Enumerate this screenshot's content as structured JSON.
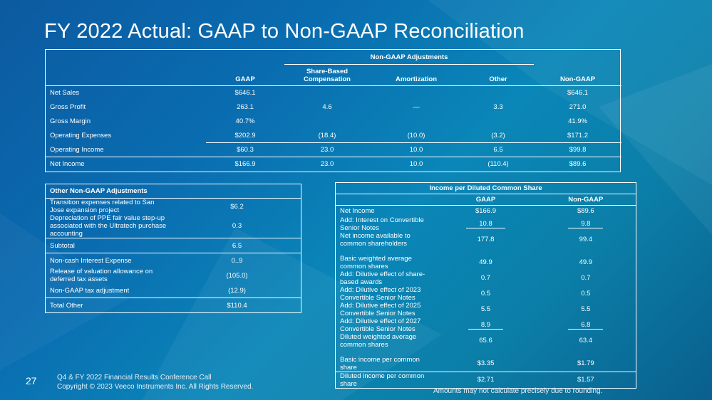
{
  "title": "FY 2022 Actual: GAAP to Non-GAAP Reconciliation",
  "main_table": {
    "group_header": "Non-GAAP Adjustments",
    "columns": [
      "GAAP",
      "Share-Based Compensation",
      "Amortization",
      "Other",
      "Non-GAAP"
    ],
    "col_sbc_line1": "Share-Based",
    "col_sbc_line2": "Compensation",
    "rows": [
      {
        "label": "Net Sales",
        "gaap": "$646.1",
        "sbc": "",
        "amort": "",
        "other": "",
        "nongaap": "$646.1"
      },
      {
        "label": "Gross Profit",
        "gaap": "263.1",
        "sbc": "4.6",
        "amort": "—",
        "other": "3.3",
        "nongaap": "271.0"
      },
      {
        "label": "Gross Margin",
        "gaap": "40.7%",
        "sbc": "",
        "amort": "",
        "other": "",
        "nongaap": "41.9%"
      },
      {
        "label": "Operating Expenses",
        "gaap": "$202.9",
        "sbc": "(18.4)",
        "amort": "(10.0)",
        "other": "(3.2)",
        "nongaap": "$171.2"
      },
      {
        "label": "Operating Income",
        "gaap": "$60.3",
        "sbc": "23.0",
        "amort": "10.0",
        "other": "6.5",
        "nongaap": "$99.8"
      },
      {
        "label": "Net Income",
        "gaap": "$166.9",
        "sbc": "23.0",
        "amort": "10.0",
        "other": "(110.4)",
        "nongaap": "$89.6"
      }
    ]
  },
  "other_table": {
    "header": "Other Non-GAAP Adjustments",
    "rows": [
      {
        "label": "Transition expenses related to San Jose expansion project",
        "value": "$6.2"
      },
      {
        "label": "Depreciation of PPE fair value step-up associated with the Ultratech purchase accounting",
        "value": "0.3"
      },
      {
        "label": "Subtotal",
        "value": "6.5"
      },
      {
        "label": "Non-cash Interest Expense",
        "value": "0..9"
      },
      {
        "label": "Release of valuation allowance on deferred tax assets",
        "value": "(105.0)"
      },
      {
        "label": "Non-GAAP tax adjustment",
        "value": "(12.9)"
      },
      {
        "label": "Total Other",
        "value": "$110.4"
      }
    ]
  },
  "eps_table": {
    "header": "Income per Diluted Common Share",
    "col_gaap": "GAAP",
    "col_nongaap": "Non-GAAP",
    "rows": [
      {
        "label": "Net Income",
        "gaap": "$166.9",
        "nongaap": "$89.6"
      },
      {
        "label": "Add: Interest on Convertible Senior Notes",
        "gaap": "10.8",
        "nongaap": "9.8"
      },
      {
        "label": "Net income available to common shareholders",
        "gaap": "177.8",
        "nongaap": "99.4"
      },
      {
        "label": "Basic weighted average common shares",
        "gaap": "49.9",
        "nongaap": "49.9"
      },
      {
        "label": "Add: Dilutive effect of share-based awards",
        "gaap": "0.7",
        "nongaap": "0.7"
      },
      {
        "label": "Add: Dilutive effect of 2023 Convertible Senior Notes",
        "gaap": "0.5",
        "nongaap": "0.5"
      },
      {
        "label": "Add: Dilutive effect of 2025 Convertible Senior Notes",
        "gaap": "5.5",
        "nongaap": "5.5"
      },
      {
        "label": "Add: Dilutive effect of 2027 Convertible Senior Notes",
        "gaap": "8.9",
        "nongaap": "6.8"
      },
      {
        "label": "Diluted weighted average common shares",
        "gaap": "65.6",
        "nongaap": "63.4"
      },
      {
        "label": "Basic income per common share",
        "gaap": "$3.35",
        "nongaap": "$1.79"
      },
      {
        "label": "Diluted income per common share",
        "gaap": "$2.71",
        "nongaap": "$1.57"
      }
    ]
  },
  "footer": {
    "page_number": "27",
    "line1": "Q4 & FY 2022 Financial Results Conference Call",
    "line2": "Copyright © 2023 Veeco Instruments Inc. All Rights Reserved.",
    "note": "Amounts may not calculate precisely due to rounding."
  }
}
